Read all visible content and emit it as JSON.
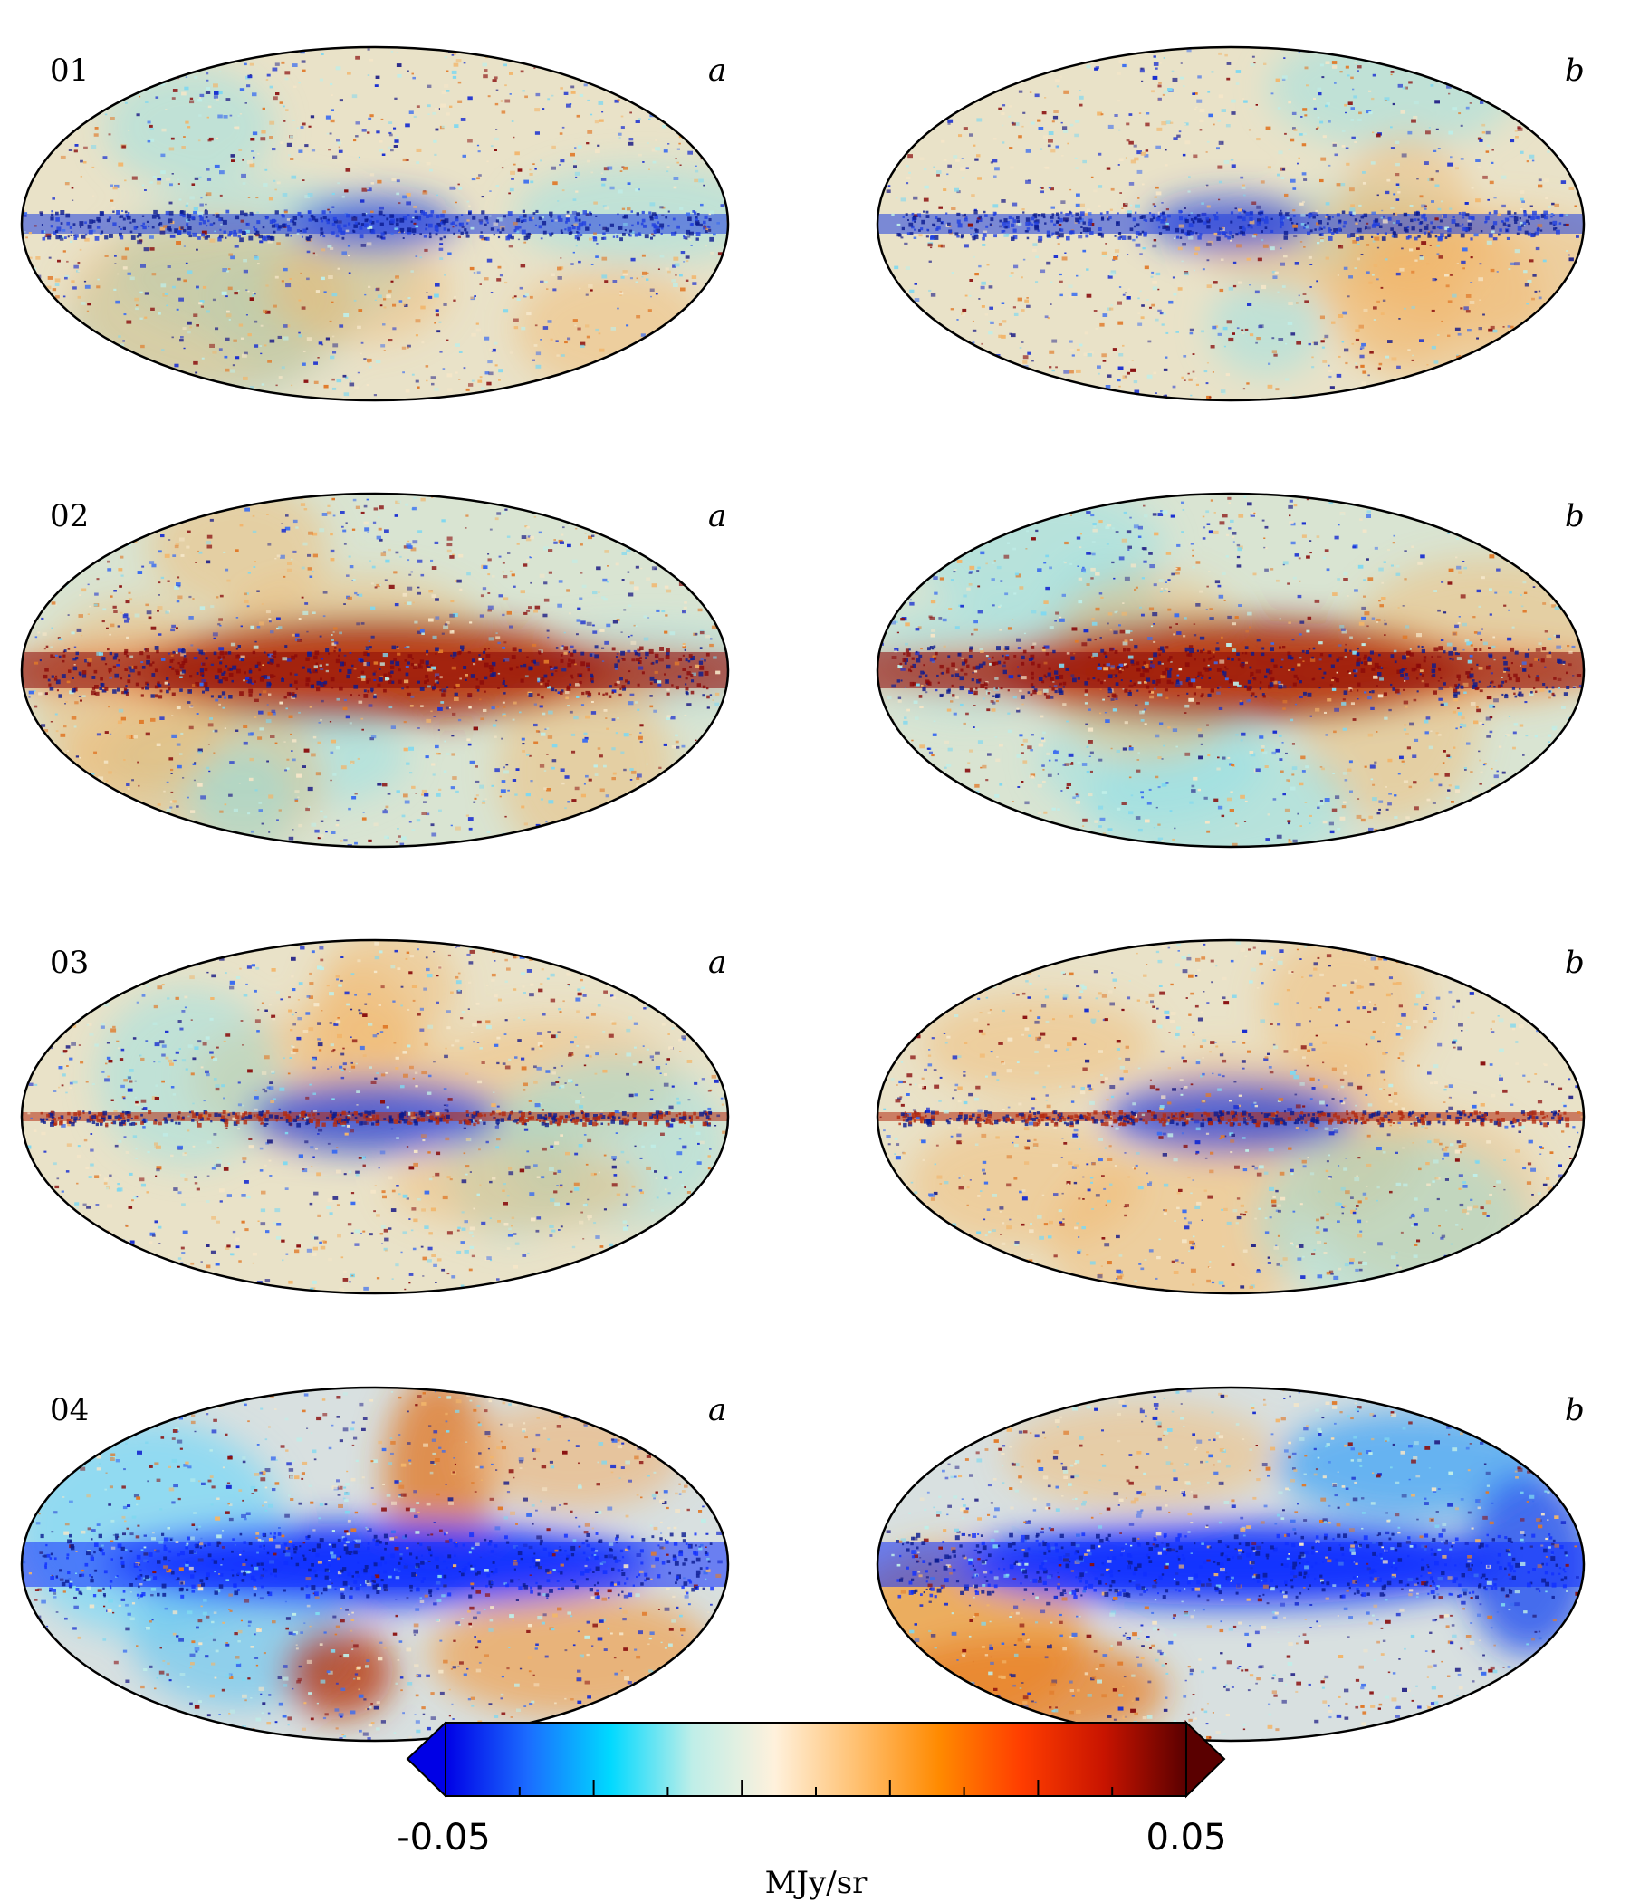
{
  "panels": [
    {
      "row_label": "01",
      "col_a": "a",
      "col_b": "b"
    },
    {
      "row_label": "02",
      "col_a": "a",
      "col_b": "b"
    },
    {
      "row_label": "03",
      "col_a": "a",
      "col_b": "b"
    },
    {
      "row_label": "04",
      "col_a": "a",
      "col_b": "b"
    }
  ],
  "colorbar": {
    "min_label": "-0.05",
    "max_label": "0.05",
    "unit": "MJy/sr",
    "min": -0.05,
    "max": 0.05,
    "colors": [
      "#0000e6",
      "#1b6cff",
      "#00d9ff",
      "#bfeee8",
      "#fff1dc",
      "#ffc070",
      "#ff8a00",
      "#ff3d00",
      "#c81400",
      "#5a0000"
    ]
  },
  "colors": {
    "background": "#e9e2c8",
    "galactic_blue": "#1f3fe0",
    "galactic_red": "#8a0a0a",
    "warm": "#f2b56a",
    "cool": "#8fe1e6"
  }
}
